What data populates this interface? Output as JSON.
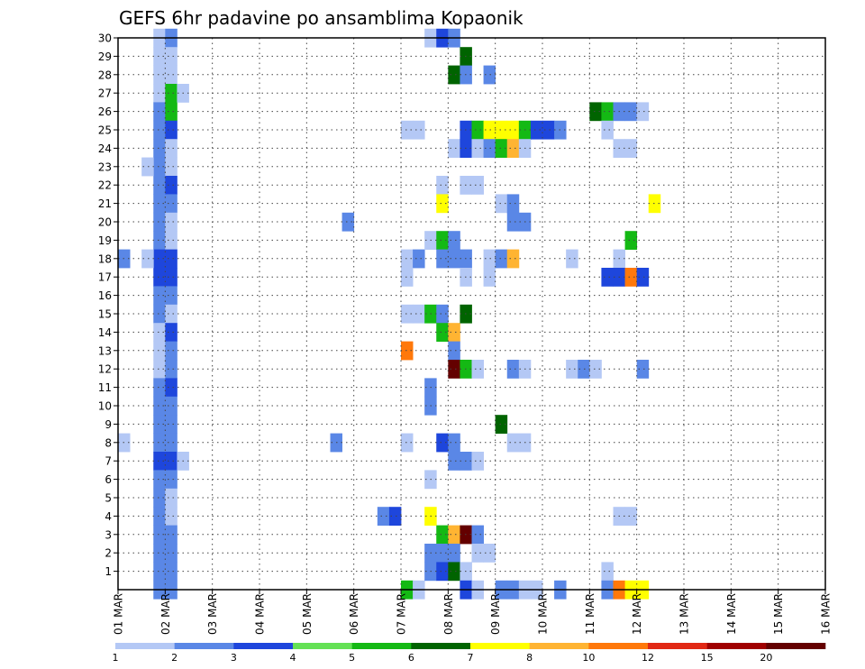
{
  "chart_data": {
    "type": "heatmap",
    "title": "GEFS 6hr padavine po ansamblima Kopaonik",
    "xlabel": "",
    "ylabel": "",
    "x_range": [
      0,
      60
    ],
    "x_tick_labels": [
      "01 MAR",
      "02 MAR",
      "03 MAR",
      "04 MAR",
      "05 MAR",
      "06 MAR",
      "07 MAR",
      "08 MAR",
      "09 MAR",
      "10 MAR",
      "11 MAR",
      "12 MAR",
      "13 MAR",
      "14 MAR",
      "15 MAR",
      "16 MAR"
    ],
    "y_range": [
      0,
      30
    ],
    "y_tick_labels": [
      "1",
      "2",
      "3",
      "4",
      "5",
      "6",
      "7",
      "8",
      "9",
      "10",
      "11",
      "12",
      "13",
      "14",
      "15",
      "16",
      "17",
      "18",
      "19",
      "20",
      "21",
      "22",
      "23",
      "24",
      "25",
      "26",
      "27",
      "28",
      "29",
      "30"
    ],
    "grid": true,
    "colorbar": {
      "levels": [
        "1",
        "2",
        "3",
        "4",
        "5",
        "6",
        "7",
        "8",
        "10",
        "12",
        "15",
        "20"
      ],
      "colors": [
        "#b4c8f5",
        "#5a87e6",
        "#1e46dc",
        "#64e155",
        "#14b914",
        "#006400",
        "#ffff00",
        "#ffb432",
        "#ff780a",
        "#e12814",
        "#a00000",
        "#640000"
      ]
    },
    "cells": [
      [
        3,
        30,
        0
      ],
      [
        3,
        29,
        0
      ],
      [
        3,
        28,
        0
      ],
      [
        3,
        27,
        0
      ],
      [
        3,
        26,
        1
      ],
      [
        3,
        25,
        1
      ],
      [
        3,
        24,
        1
      ],
      [
        3,
        23,
        1
      ],
      [
        3,
        22,
        1
      ],
      [
        3,
        21,
        1
      ],
      [
        3,
        20,
        1
      ],
      [
        3,
        19,
        1
      ],
      [
        3,
        18,
        2
      ],
      [
        3,
        17,
        2
      ],
      [
        3,
        16,
        1
      ],
      [
        3,
        15,
        1
      ],
      [
        3,
        14,
        0
      ],
      [
        3,
        13,
        0
      ],
      [
        3,
        12,
        0
      ],
      [
        3,
        11,
        1
      ],
      [
        3,
        10,
        1
      ],
      [
        3,
        9,
        1
      ],
      [
        3,
        8,
        1
      ],
      [
        3,
        7,
        2
      ],
      [
        3,
        6,
        1
      ],
      [
        3,
        5,
        1
      ],
      [
        3,
        4,
        1
      ],
      [
        3,
        3,
        1
      ],
      [
        3,
        2,
        1
      ],
      [
        3,
        1,
        1
      ],
      [
        3,
        0,
        1
      ],
      [
        4,
        30,
        1
      ],
      [
        4,
        29,
        0
      ],
      [
        4,
        28,
        0
      ],
      [
        4,
        27,
        4
      ],
      [
        4,
        26,
        4
      ],
      [
        4,
        25,
        2
      ],
      [
        4,
        24,
        0
      ],
      [
        4,
        23,
        0
      ],
      [
        4,
        22,
        2
      ],
      [
        4,
        21,
        1
      ],
      [
        4,
        20,
        0
      ],
      [
        4,
        19,
        0
      ],
      [
        4,
        18,
        2
      ],
      [
        4,
        17,
        2
      ],
      [
        4,
        16,
        1
      ],
      [
        4,
        15,
        0
      ],
      [
        4,
        14,
        2
      ],
      [
        4,
        13,
        1
      ],
      [
        4,
        12,
        1
      ],
      [
        4,
        11,
        2
      ],
      [
        4,
        10,
        1
      ],
      [
        4,
        9,
        1
      ],
      [
        4,
        8,
        1
      ],
      [
        4,
        7,
        2
      ],
      [
        4,
        6,
        1
      ],
      [
        4,
        5,
        0
      ],
      [
        4,
        4,
        0
      ],
      [
        4,
        3,
        1
      ],
      [
        4,
        2,
        1
      ],
      [
        4,
        1,
        1
      ],
      [
        4,
        0,
        1
      ],
      [
        5,
        27,
        0
      ],
      [
        5,
        7,
        0
      ],
      [
        2,
        23,
        0
      ],
      [
        2,
        18,
        0
      ],
      [
        0,
        18,
        1
      ],
      [
        0,
        8,
        0
      ],
      [
        19,
        20,
        1
      ],
      [
        18,
        8,
        1
      ],
      [
        22,
        4,
        1
      ],
      [
        23,
        4,
        2
      ],
      [
        24,
        25,
        0
      ],
      [
        25,
        25,
        0
      ],
      [
        24,
        18,
        0
      ],
      [
        25,
        18,
        1
      ],
      [
        24,
        17,
        0
      ],
      [
        24,
        15,
        0
      ],
      [
        25,
        15,
        0
      ],
      [
        24,
        13,
        8
      ],
      [
        24,
        8,
        0
      ],
      [
        24,
        0,
        4
      ],
      [
        25,
        0,
        0
      ],
      [
        26,
        30,
        0
      ],
      [
        26,
        19,
        0
      ],
      [
        26,
        15,
        4
      ],
      [
        26,
        11,
        1
      ],
      [
        26,
        10,
        1
      ],
      [
        26,
        6,
        0
      ],
      [
        26,
        4,
        6
      ],
      [
        26,
        2,
        1
      ],
      [
        26,
        1,
        1
      ],
      [
        27,
        30,
        2
      ],
      [
        27,
        22,
        0
      ],
      [
        27,
        21,
        6
      ],
      [
        27,
        19,
        4
      ],
      [
        27,
        18,
        1
      ],
      [
        27,
        15,
        1
      ],
      [
        27,
        14,
        4
      ],
      [
        27,
        8,
        2
      ],
      [
        27,
        3,
        4
      ],
      [
        27,
        2,
        1
      ],
      [
        27,
        1,
        2
      ],
      [
        28,
        30,
        1
      ],
      [
        28,
        28,
        5
      ],
      [
        28,
        24,
        0
      ],
      [
        28,
        19,
        1
      ],
      [
        28,
        18,
        1
      ],
      [
        28,
        14,
        7
      ],
      [
        28,
        13,
        1
      ],
      [
        28,
        12,
        11
      ],
      [
        28,
        8,
        1
      ],
      [
        28,
        7,
        1
      ],
      [
        28,
        3,
        7
      ],
      [
        28,
        2,
        1
      ],
      [
        28,
        1,
        5
      ],
      [
        29,
        29,
        5
      ],
      [
        29,
        28,
        1
      ],
      [
        29,
        25,
        2
      ],
      [
        29,
        24,
        2
      ],
      [
        29,
        22,
        0
      ],
      [
        29,
        18,
        1
      ],
      [
        29,
        17,
        0
      ],
      [
        29,
        15,
        5
      ],
      [
        29,
        12,
        4
      ],
      [
        29,
        7,
        1
      ],
      [
        29,
        3,
        11
      ],
      [
        29,
        1,
        0
      ],
      [
        29,
        0,
        2
      ],
      [
        30,
        25,
        4
      ],
      [
        30,
        24,
        0
      ],
      [
        30,
        22,
        0
      ],
      [
        30,
        12,
        0
      ],
      [
        30,
        7,
        0
      ],
      [
        30,
        3,
        1
      ],
      [
        30,
        2,
        0
      ],
      [
        30,
        0,
        0
      ],
      [
        31,
        28,
        1
      ],
      [
        31,
        25,
        6
      ],
      [
        31,
        24,
        1
      ],
      [
        31,
        18,
        0
      ],
      [
        31,
        17,
        0
      ],
      [
        31,
        2,
        0
      ],
      [
        32,
        25,
        6
      ],
      [
        32,
        24,
        4
      ],
      [
        32,
        21,
        0
      ],
      [
        32,
        18,
        1
      ],
      [
        32,
        9,
        5
      ],
      [
        32,
        0,
        1
      ],
      [
        33,
        25,
        6
      ],
      [
        33,
        24,
        7
      ],
      [
        33,
        21,
        1
      ],
      [
        33,
        20,
        1
      ],
      [
        33,
        18,
        7
      ],
      [
        33,
        12,
        1
      ],
      [
        33,
        8,
        0
      ],
      [
        33,
        0,
        1
      ],
      [
        34,
        25,
        4
      ],
      [
        34,
        24,
        0
      ],
      [
        34,
        20,
        1
      ],
      [
        34,
        12,
        0
      ],
      [
        34,
        8,
        0
      ],
      [
        34,
        0,
        0
      ],
      [
        35,
        25,
        2
      ],
      [
        35,
        0,
        0
      ],
      [
        36,
        25,
        2
      ],
      [
        37,
        25,
        1
      ],
      [
        37,
        0,
        1
      ],
      [
        38,
        18,
        0
      ],
      [
        38,
        12,
        0
      ],
      [
        39,
        12,
        1
      ],
      [
        40,
        12,
        0
      ],
      [
        40,
        26,
        5
      ],
      [
        41,
        26,
        4
      ],
      [
        41,
        25,
        0
      ],
      [
        41,
        17,
        2
      ],
      [
        41,
        1,
        0
      ],
      [
        41,
        0,
        1
      ],
      [
        42,
        26,
        1
      ],
      [
        42,
        24,
        0
      ],
      [
        42,
        18,
        0
      ],
      [
        42,
        17,
        2
      ],
      [
        42,
        4,
        0
      ],
      [
        42,
        0,
        8
      ],
      [
        43,
        26,
        1
      ],
      [
        43,
        24,
        0
      ],
      [
        43,
        19,
        4
      ],
      [
        43,
        17,
        8
      ],
      [
        43,
        4,
        0
      ],
      [
        43,
        0,
        6
      ],
      [
        44,
        26,
        0
      ],
      [
        44,
        17,
        2
      ],
      [
        44,
        12,
        1
      ],
      [
        44,
        0,
        6
      ],
      [
        45,
        21,
        6
      ]
    ]
  }
}
